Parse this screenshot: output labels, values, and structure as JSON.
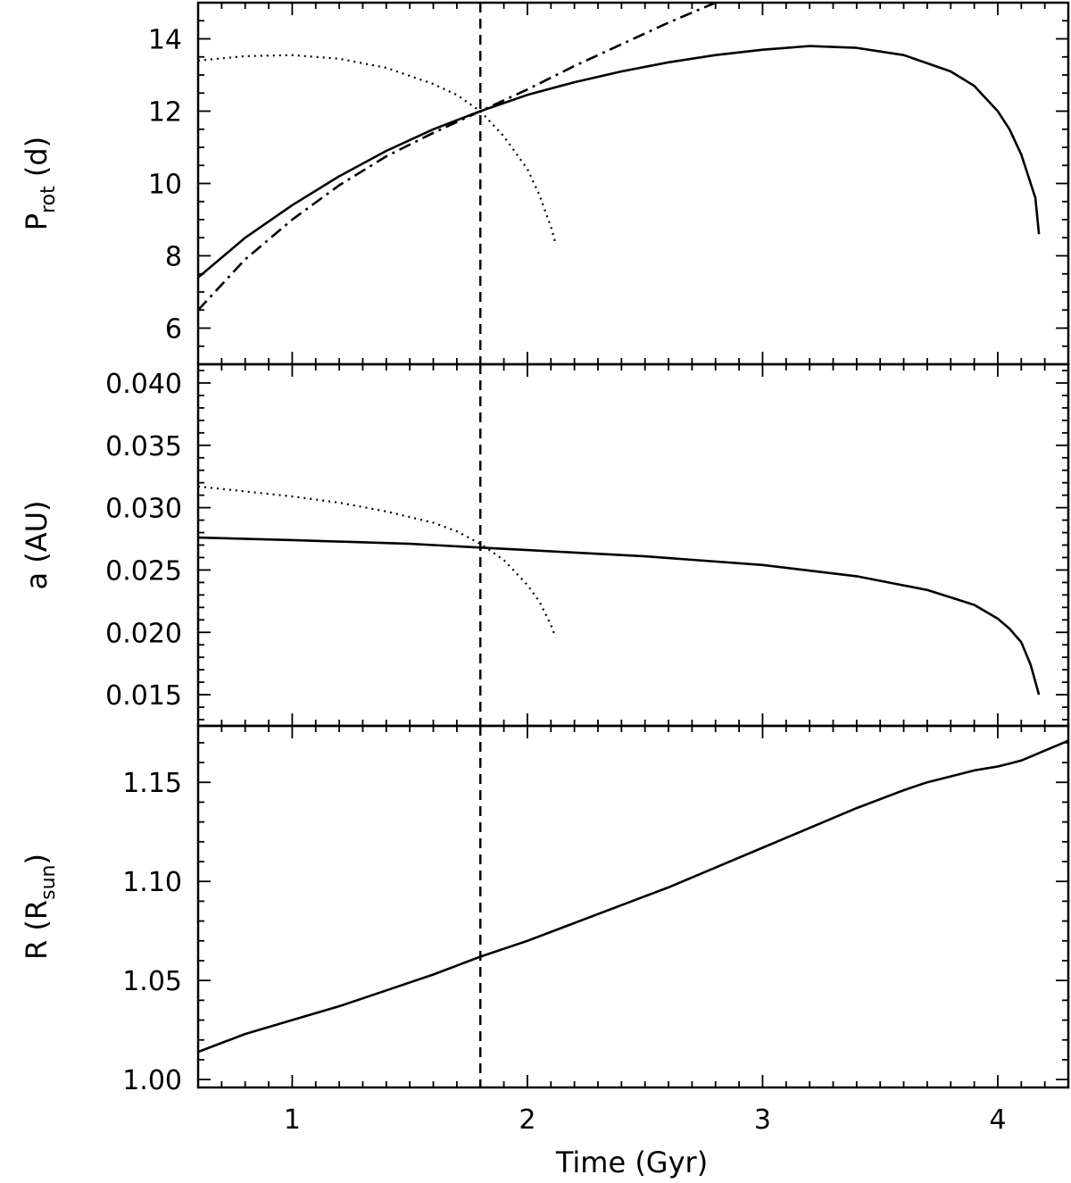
{
  "chart_data": {
    "type": "line",
    "xlabel": "Time (Gyr)",
    "xlim": [
      0.6,
      4.3
    ],
    "x_ticks": [
      1,
      2,
      3,
      4
    ],
    "x_tick_labels": [
      "1",
      "2",
      "3",
      "4"
    ],
    "x_minor_step": 0.1,
    "vertical_marker_x": 1.8,
    "panels": [
      {
        "id": "prot",
        "ylabel": "P",
        "ylabel_sub": "rot",
        "ylabel_tail": " (d)",
        "ylim": [
          5,
          15
        ],
        "y_ticks": [
          6,
          8,
          10,
          12,
          14
        ],
        "y_tick_labels": [
          "6",
          "8",
          "10",
          "12",
          "14"
        ],
        "y_minor_step": 0.5,
        "series": [
          {
            "style": "solid",
            "x": [
              0.6,
              0.8,
              1.0,
              1.2,
              1.4,
              1.6,
              1.8,
              2.0,
              2.2,
              2.4,
              2.6,
              2.8,
              3.0,
              3.2,
              3.4,
              3.6,
              3.8,
              3.9,
              4.0,
              4.05,
              4.1,
              4.13,
              4.16,
              4.175
            ],
            "y": [
              7.4,
              8.5,
              9.4,
              10.2,
              10.9,
              11.5,
              12.0,
              12.45,
              12.8,
              13.1,
              13.35,
              13.55,
              13.7,
              13.8,
              13.75,
              13.55,
              13.1,
              12.7,
              12.0,
              11.5,
              10.8,
              10.2,
              9.6,
              8.6
            ]
          },
          {
            "style": "dashdot",
            "x": [
              0.6,
              0.8,
              1.0,
              1.2,
              1.4,
              1.6,
              1.8,
              2.0,
              2.2,
              2.4,
              2.6,
              2.8
            ],
            "y": [
              6.5,
              7.9,
              9.0,
              9.95,
              10.75,
              11.4,
              12.0,
              12.6,
              13.25,
              13.85,
              14.45,
              15.0
            ]
          },
          {
            "style": "dotted",
            "x": [
              0.6,
              0.8,
              1.0,
              1.2,
              1.4,
              1.6,
              1.7,
              1.8,
              1.9,
              2.0,
              2.05,
              2.1,
              2.12
            ],
            "y": [
              13.4,
              13.52,
              13.55,
              13.45,
              13.2,
              12.75,
              12.45,
              12.0,
              11.3,
              10.4,
              9.7,
              8.8,
              8.35
            ]
          }
        ]
      },
      {
        "id": "a",
        "ylabel": "a (AU)",
        "ylim": [
          0.0125,
          0.0415
        ],
        "y_ticks": [
          0.015,
          0.02,
          0.025,
          0.03,
          0.035,
          0.04
        ],
        "y_tick_labels": [
          "0.015",
          "0.020",
          "0.025",
          "0.030",
          "0.035",
          "0.040"
        ],
        "y_minor_step": 0.001,
        "series": [
          {
            "style": "solid",
            "x": [
              0.6,
              1.0,
              1.5,
              1.8,
              2.0,
              2.5,
              3.0,
              3.4,
              3.7,
              3.9,
              4.0,
              4.05,
              4.1,
              4.14,
              4.175
            ],
            "y": [
              0.0276,
              0.0274,
              0.0271,
              0.0268,
              0.0266,
              0.0261,
              0.0254,
              0.0245,
              0.0234,
              0.0222,
              0.0211,
              0.0203,
              0.0192,
              0.0174,
              0.015
            ]
          },
          {
            "style": "dotted",
            "x": [
              0.6,
              0.8,
              1.0,
              1.2,
              1.4,
              1.6,
              1.7,
              1.8,
              1.9,
              2.0,
              2.05,
              2.1,
              2.12
            ],
            "y": [
              0.0317,
              0.0313,
              0.0309,
              0.0304,
              0.0297,
              0.0288,
              0.0281,
              0.0271,
              0.0258,
              0.0238,
              0.0225,
              0.0206,
              0.0196
            ]
          }
        ]
      },
      {
        "id": "r",
        "ylabel": "R (R",
        "ylabel_sub": "sun",
        "ylabel_tail": ")",
        "ylim": [
          0.996,
          1.1785
        ],
        "y_ticks": [
          1.0,
          1.05,
          1.1,
          1.15
        ],
        "y_tick_labels": [
          "1.00",
          "1.05",
          "1.10",
          "1.15"
        ],
        "y_minor_step": 0.01,
        "series": [
          {
            "style": "solid",
            "x": [
              0.6,
              0.8,
              1.0,
              1.2,
              1.4,
              1.6,
              1.8,
              2.0,
              2.2,
              2.4,
              2.6,
              2.8,
              3.0,
              3.2,
              3.4,
              3.6,
              3.7,
              3.8,
              3.9,
              3.95,
              4.0,
              4.05,
              4.1,
              4.15,
              4.2,
              4.25,
              4.3
            ],
            "y": [
              1.014,
              1.023,
              1.03,
              1.037,
              1.045,
              1.053,
              1.062,
              1.07,
              1.079,
              1.088,
              1.097,
              1.107,
              1.117,
              1.127,
              1.137,
              1.146,
              1.15,
              1.153,
              1.156,
              1.157,
              1.158,
              1.1595,
              1.161,
              1.1635,
              1.166,
              1.1685,
              1.171
            ]
          }
        ]
      }
    ]
  }
}
